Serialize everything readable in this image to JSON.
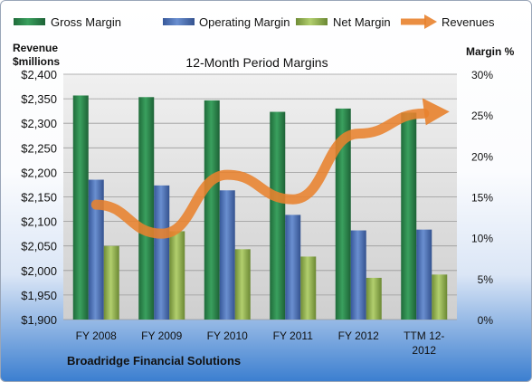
{
  "chart_data": {
    "type": "bar",
    "title": "12-Month Period Margins",
    "company": "Broadridge Financial Solutions",
    "left_axis_label": [
      "Revenue",
      "$millions"
    ],
    "right_axis_label": "Margin %",
    "categories": [
      "FY 2008",
      "FY 2009",
      "FY 2010",
      "FY 2011",
      "FY 2012",
      "TTM 12-2012"
    ],
    "category_display": [
      [
        "FY 2008"
      ],
      [
        "FY 2009"
      ],
      [
        "FY 2010"
      ],
      [
        "FY 2011"
      ],
      [
        "FY 2012"
      ],
      [
        "TTM 12-",
        "2012"
      ]
    ],
    "left_axis": {
      "min": 1900,
      "max": 2400,
      "step": 50,
      "tick_labels": [
        "$1,900",
        "$1,950",
        "$2,000",
        "$2,050",
        "$2,100",
        "$2,150",
        "$2,200",
        "$2,250",
        "$2,300",
        "$2,350",
        "$2,400"
      ]
    },
    "right_axis": {
      "min": 0,
      "max": 30,
      "step": 5,
      "tick_labels": [
        "0%",
        "5%",
        "10%",
        "15%",
        "20%",
        "25%",
        "30%"
      ]
    },
    "series": [
      {
        "name": "Gross Margin",
        "kind": "bar",
        "axis": "right",
        "color": "#2e8b4e",
        "values": [
          27.4,
          27.2,
          26.8,
          25.4,
          25.8,
          25.3
        ]
      },
      {
        "name": "Operating Margin",
        "kind": "bar",
        "axis": "right",
        "color": "#4f74b8",
        "values": [
          17.1,
          16.4,
          15.8,
          12.8,
          10.9,
          11.0
        ]
      },
      {
        "name": "Net Margin",
        "kind": "bar",
        "axis": "right",
        "color": "#94b454",
        "values": [
          9.0,
          10.8,
          8.6,
          7.7,
          5.1,
          5.5
        ]
      },
      {
        "name": "Revenues",
        "kind": "line",
        "axis": "left",
        "color": "#e8822e",
        "values": [
          2134,
          2075,
          2195,
          2145,
          2279,
          2320
        ]
      }
    ],
    "grid": true,
    "legend": "top"
  }
}
